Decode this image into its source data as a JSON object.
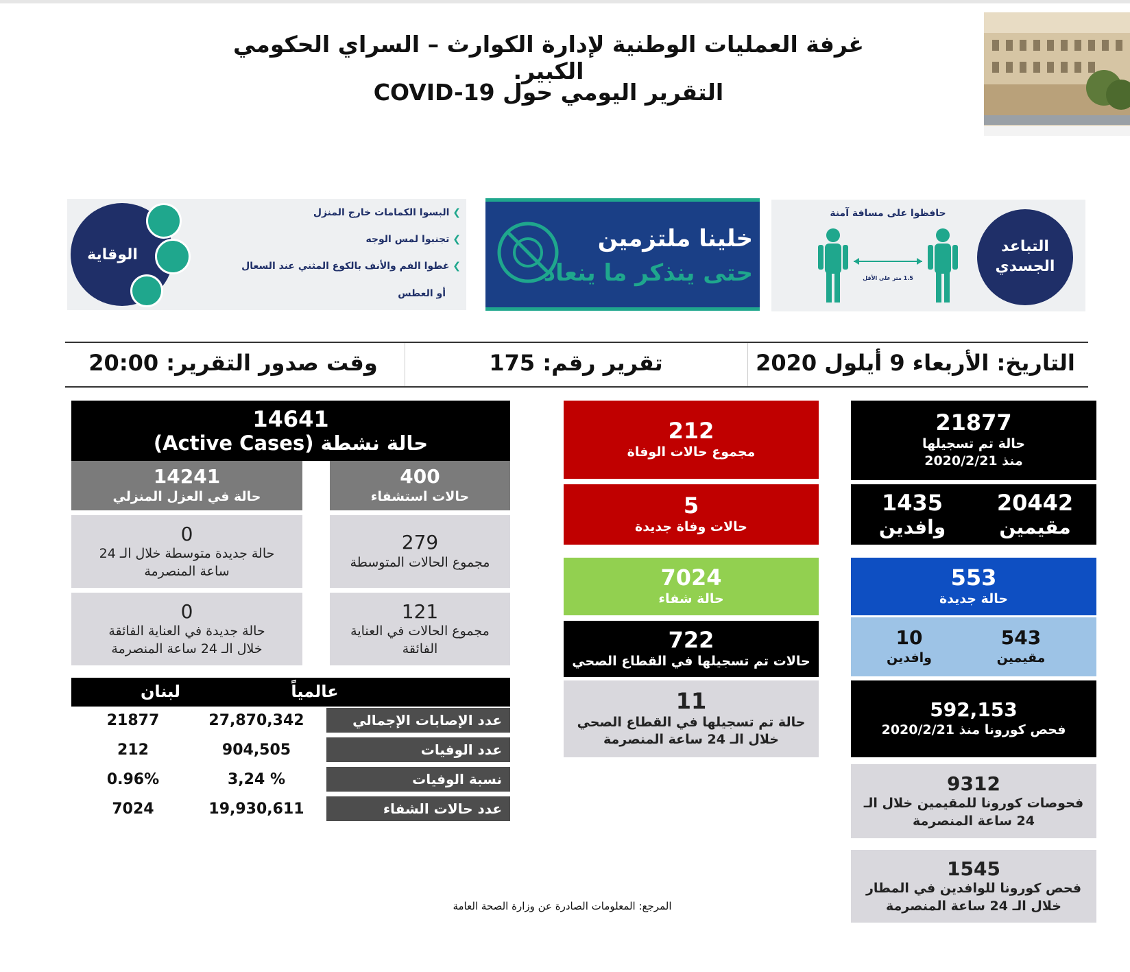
{
  "header": {
    "title_line1": "غرفة العمليات الوطنية لإدارة الكوارث – السراي الحكومي الكبير.",
    "title_line2": "التقرير اليومي حول COVID-19"
  },
  "banners": {
    "prevention": {
      "circle_label": "الوقاية",
      "bullets": [
        "البسوا الكمامات خارج المنزل",
        "تجنبوا لمس الوجه",
        "غطوا الفم والأنف بالكوع المثني عند السعال",
        "أو العطس"
      ]
    },
    "committed": {
      "line1": "خلينا ملتزمين",
      "line2": "حتى ينذكر ما ينعاد"
    },
    "distancing": {
      "top_text": "حافظوا على مسافة آمنة",
      "circle_line1": "التباعد",
      "circle_line2": "الجسدي",
      "small_text": "1.5 متر على الأقل"
    }
  },
  "report_info": {
    "date": "التاريخ: الأربعاء 9 أيلول 2020",
    "number": "تقرير رقم: 175",
    "time": "وقت صدور التقرير: 20:00"
  },
  "right_col": {
    "total": {
      "value": "21877",
      "line1": "حالة تم تسجيلها",
      "line2": "منذ 2020/2/21"
    },
    "residents": {
      "value": "20442",
      "label": "مقيمين"
    },
    "arrivals": {
      "value": "1435",
      "label": "وافدين"
    },
    "new_cases": {
      "value": "553",
      "label": "حالة جديدة"
    },
    "new_residents": {
      "value": "543",
      "label": "مقيمين"
    },
    "new_arrivals": {
      "value": "10",
      "label": "وافدين"
    },
    "tests_total": {
      "value": "592,153",
      "label": "فحص كورونا منذ 2020/2/21"
    },
    "tests_residents": {
      "value": "9312",
      "line1": "فحوصات كورونا للمقيمين خلال الـ",
      "line2": "24 ساعة المنصرمة"
    },
    "tests_airport": {
      "value": "1545",
      "line1": "فحص كورونا للوافدين في المطار",
      "line2": "خلال الـ 24 ساعة المنصرمة"
    }
  },
  "mid_col": {
    "deaths_total": {
      "value": "212",
      "label": "مجموع حالات الوفاة"
    },
    "deaths_new": {
      "value": "5",
      "label": "حالات وفاة جديدة"
    },
    "recovered": {
      "value": "7024",
      "label": "حالة شفاء"
    },
    "health_sector": {
      "value": "722",
      "label": "حالات تم تسجيلها في القطاع الصحي"
    },
    "health_sector_new": {
      "value": "11",
      "line1": "حالة تم تسجيلها في القطاع الصحي",
      "line2": "خلال الـ 24 ساعة المنصرمة"
    },
    "source": "المرجع: المعلومات الصادرة عن وزارة الصحة العامة"
  },
  "left_col": {
    "active": {
      "value": "14641",
      "label": "حالة نشطة (Active Cases)"
    },
    "hospitalized": {
      "value": "400",
      "label": "حالات استشفاء"
    },
    "home_isolation": {
      "value": "14241",
      "label": "حالة في العزل المنزلي"
    },
    "moderate_total": {
      "value": "279",
      "label": "مجموع الحالات المتوسطة"
    },
    "moderate_new": {
      "value": "0",
      "line1": "حالة جديدة متوسطة خلال الـ 24",
      "line2": "ساعة المنصرمة"
    },
    "icu_total": {
      "value": "121",
      "line1": "مجموع الحالات في العناية",
      "line2": "الفائقة"
    },
    "icu_new": {
      "value": "0",
      "line1": "حالة جديدة في العناية الفائقة",
      "line2": "خلال الـ 24 ساعة المنصرمة"
    }
  },
  "comparison_table": {
    "col_lebanon": "لبنان",
    "col_global": "عالمياً",
    "rows": [
      {
        "label": "عدد الإصابات الإجمالي",
        "global": "27,870,342",
        "lebanon": "21877"
      },
      {
        "label": "عدد الوفيات",
        "global": "904,505",
        "lebanon": "212"
      },
      {
        "label": "نسبة الوفيات",
        "global": "3,24 %",
        "lebanon": "0.96%"
      },
      {
        "label": "عدد حالات الشفاء",
        "global": "19,930,611",
        "lebanon": "7024"
      }
    ]
  },
  "colors": {
    "navy": "#1f2f68",
    "teal": "#1fa78d",
    "red": "#c00000",
    "green": "#92d050",
    "blue": "#0e4fc2",
    "light_blue": "#9dc3e6"
  }
}
